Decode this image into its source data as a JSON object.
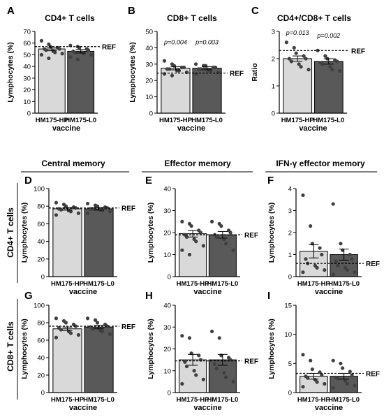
{
  "colors": {
    "bar_hp": "#d9d9d9",
    "bar_l0": "#595959",
    "axis": "#000000",
    "point": "#404040"
  },
  "column_titles": [
    "Central memory",
    "Effector memory",
    "IFN-γ effector memory"
  ],
  "row_labels": [
    "CD4+ T cells",
    "CD8+ T cells"
  ],
  "chart_data": [
    {
      "letter": "A",
      "type": "bar",
      "title": "CD4+ T cells",
      "xlabel": "vaccine",
      "ylabel": "Lymphocytes (%)",
      "categories": [
        "HM175-HP",
        "HM175-L0"
      ],
      "values": [
        55,
        53
      ],
      "errors": [
        1.5,
        1.5
      ],
      "ylim": [
        0,
        70
      ],
      "yticks": [
        "0",
        "10",
        "20",
        "30",
        "40",
        "50",
        "60",
        "70"
      ],
      "ref": 57,
      "ref_label": "REF",
      "pvalues": [],
      "points": [
        [
          62,
          59,
          57,
          56,
          55,
          55,
          54,
          53,
          52,
          51,
          50,
          47
        ],
        [
          58,
          57,
          56,
          55,
          54,
          53,
          52,
          52,
          51,
          50,
          48,
          46
        ]
      ]
    },
    {
      "letter": "B",
      "type": "bar",
      "title": "CD8+ T cells",
      "xlabel": "vaccine",
      "ylabel": "Lymphocytes (%)",
      "categories": [
        "HM175-HP",
        "HM175-L0"
      ],
      "values": [
        27.5,
        27.5
      ],
      "errors": [
        1,
        1
      ],
      "ylim": [
        0,
        50
      ],
      "yticks": [
        "0",
        "10",
        "20",
        "30",
        "40",
        "50"
      ],
      "ref": 24.5,
      "ref_label": "REF",
      "pvalues": [
        "p=0.004",
        "p=0.003"
      ],
      "points": [
        [
          32,
          30,
          29,
          28,
          28,
          27,
          27,
          26,
          26,
          25,
          24,
          23
        ],
        [
          30,
          29,
          29,
          28,
          28,
          27,
          27,
          26,
          26,
          25,
          24
        ]
      ]
    },
    {
      "letter": "C",
      "type": "bar",
      "title": "CD4+/CD8+ T cells",
      "xlabel": "vaccine",
      "ylabel": "Ratio",
      "categories": [
        "HM175-HP",
        "HM175-L0"
      ],
      "values": [
        2.0,
        1.9
      ],
      "errors": [
        0.1,
        0.1
      ],
      "ylim": [
        0,
        3
      ],
      "yticks": [
        "0",
        "1",
        "2",
        "3"
      ],
      "ref": 2.3,
      "ref_label": "REF",
      "pvalues": [
        "p=0.013",
        "p=0.002"
      ],
      "points": [
        [
          2.6,
          2.4,
          2.2,
          2.1,
          2.0,
          2.0,
          1.9,
          1.8,
          1.7,
          1.6
        ],
        [
          2.3,
          2.1,
          2.0,
          1.95,
          1.9,
          1.85,
          1.8,
          1.7,
          1.6,
          1.55
        ]
      ]
    },
    {
      "letter": "D",
      "type": "bar",
      "title": "",
      "xlabel": "vaccine",
      "ylabel": "Lymphocytes (%)",
      "categories": [
        "HM175-HP",
        "HM175-L0"
      ],
      "values": [
        77,
        77
      ],
      "errors": [
        1.5,
        1.5
      ],
      "ylim": [
        0,
        100
      ],
      "yticks": [
        "0",
        "20",
        "40",
        "60",
        "80",
        "100"
      ],
      "ref": 78,
      "ref_label": "REF",
      "pvalues": [],
      "points": [
        [
          84,
          82,
          80,
          79,
          78,
          77,
          76,
          75,
          74,
          72,
          70
        ],
        [
          83,
          81,
          80,
          79,
          78,
          77,
          77,
          76,
          75,
          74,
          72
        ]
      ]
    },
    {
      "letter": "E",
      "type": "bar",
      "title": "",
      "xlabel": "vaccine",
      "ylabel": "Lymphocytes (%)",
      "categories": [
        "HM175-HP",
        "HM175-L0"
      ],
      "values": [
        19.5,
        19
      ],
      "errors": [
        1.5,
        1.5
      ],
      "ylim": [
        0,
        40
      ],
      "yticks": [
        "0",
        "10",
        "20",
        "30",
        "40"
      ],
      "ref": 19,
      "ref_label": "REF",
      "pvalues": [],
      "points": [
        [
          25,
          24,
          23,
          21,
          20,
          19,
          18,
          17,
          16,
          14,
          12,
          10
        ],
        [
          25,
          24,
          23,
          21,
          20,
          19,
          18,
          17,
          15,
          12
        ]
      ]
    },
    {
      "letter": "F",
      "type": "bar",
      "title": "",
      "xlabel": "vaccine",
      "ylabel": "Lymphocytes (%)",
      "categories": [
        "HM175-HP",
        "HM175-L0"
      ],
      "values": [
        1.15,
        1.0
      ],
      "errors": [
        0.3,
        0.25
      ],
      "ylim": [
        0,
        4
      ],
      "yticks": [
        "0",
        "1",
        "2",
        "3",
        "4"
      ],
      "ref": 0.6,
      "ref_label": "REF",
      "pvalues": [],
      "points": [
        [
          3.7,
          2.3,
          1.5,
          1.3,
          1.0,
          0.8,
          0.6,
          0.5,
          0.4,
          0.3,
          0.2
        ],
        [
          3.3,
          1.5,
          1.2,
          1.0,
          0.8,
          0.7,
          0.5,
          0.4,
          0.3,
          0.2,
          0.1
        ]
      ]
    },
    {
      "letter": "G",
      "type": "bar",
      "title": "",
      "xlabel": "vaccine",
      "ylabel": "Lymphocytes (%)",
      "categories": [
        "HM175-HP",
        "HM175-L0"
      ],
      "values": [
        73,
        75
      ],
      "errors": [
        2,
        2
      ],
      "ylim": [
        0,
        100
      ],
      "yticks": [
        "0",
        "20",
        "40",
        "60",
        "80",
        "100"
      ],
      "ref": 76,
      "ref_label": "REF",
      "pvalues": [],
      "points": [
        [
          85,
          82,
          80,
          78,
          76,
          74,
          72,
          70,
          68,
          66,
          63
        ],
        [
          85,
          83,
          80,
          78,
          76,
          75,
          73,
          71,
          70,
          67
        ]
      ]
    },
    {
      "letter": "H",
      "type": "bar",
      "title": "",
      "xlabel": "vaccine",
      "ylabel": "Lymphocytes (%)",
      "categories": [
        "HM175-HP",
        "HM175-L0"
      ],
      "values": [
        15,
        15
      ],
      "errors": [
        2.5,
        2.5
      ],
      "ylim": [
        0,
        40
      ],
      "yticks": [
        "0",
        "10",
        "20",
        "30",
        "40"
      ],
      "ref": 14.5,
      "ref_label": "REF",
      "pvalues": [],
      "points": [
        [
          26,
          25,
          18,
          17,
          15,
          14,
          12,
          10,
          8,
          6,
          4
        ],
        [
          28,
          25,
          17,
          16,
          15,
          13,
          11,
          9,
          7,
          5
        ]
      ]
    },
    {
      "letter": "I",
      "type": "bar",
      "title": "",
      "xlabel": "vaccine",
      "ylabel": "Lymphocytes (%)",
      "categories": [
        "HM175-HP",
        "HM175-L0"
      ],
      "values": [
        2.8,
        2.8
      ],
      "errors": [
        0.5,
        0.5
      ],
      "ylim": [
        0,
        15
      ],
      "yticks": [
        "0",
        "5",
        "10",
        "15"
      ],
      "ref": 3.3,
      "ref_label": "REF",
      "pvalues": [],
      "points": [
        [
          6.5,
          5.5,
          4.0,
          3.5,
          3.0,
          2.8,
          2.5,
          2.2,
          1.8,
          1.5,
          1.0
        ],
        [
          5.5,
          5.0,
          4.2,
          3.6,
          3.0,
          2.6,
          2.4,
          2.0,
          1.5,
          1.2,
          0.8
        ]
      ]
    }
  ]
}
